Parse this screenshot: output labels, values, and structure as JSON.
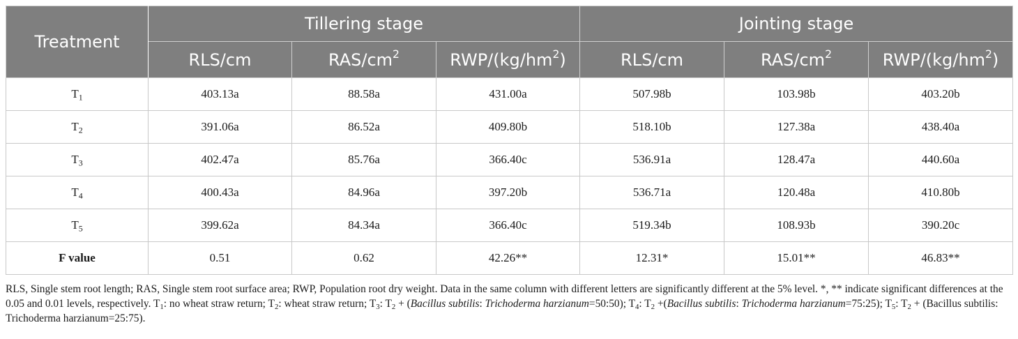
{
  "table": {
    "treatment_header": "Treatment",
    "groups": [
      "Tillering stage",
      "Jointing stage"
    ],
    "sub_headers": [
      {
        "base": "RLS/cm",
        "sup": "",
        "suffix": ""
      },
      {
        "base": "RAS/cm",
        "sup": "2",
        "suffix": ""
      },
      {
        "base": "RWP/(kg/hm",
        "sup": "2",
        "suffix": ")"
      },
      {
        "base": "RLS/cm",
        "sup": "",
        "suffix": ""
      },
      {
        "base": "RAS/cm",
        "sup": "2",
        "suffix": ""
      },
      {
        "base": "RWP/(kg/hm",
        "sup": "2",
        "suffix": ")"
      }
    ],
    "rows": [
      {
        "label": "T",
        "sub": "1",
        "values": [
          "403.13a",
          "88.58a",
          "431.00a",
          "507.98b",
          "103.98b",
          "403.20b"
        ]
      },
      {
        "label": "T",
        "sub": "2",
        "values": [
          "391.06a",
          "86.52a",
          "409.80b",
          "518.10b",
          "127.38a",
          "438.40a"
        ]
      },
      {
        "label": "T",
        "sub": "3",
        "values": [
          "402.47a",
          "85.76a",
          "366.40c",
          "536.91a",
          "128.47a",
          "440.60a"
        ]
      },
      {
        "label": "T",
        "sub": "4",
        "values": [
          "400.43a",
          "84.96a",
          "397.20b",
          "536.71a",
          "120.48a",
          "410.80b"
        ]
      },
      {
        "label": "T",
        "sub": "5",
        "values": [
          "399.62a",
          "84.34a",
          "366.40c",
          "519.34b",
          "108.93b",
          "390.20c"
        ]
      },
      {
        "label": "F value",
        "sub": "",
        "bold": true,
        "values": [
          "0.51",
          "0.62",
          "42.26**",
          "12.31*",
          "15.01**",
          "46.83**"
        ]
      }
    ]
  },
  "footnote": [
    {
      "t": "RLS, Single stem root length; RAS, Single stem root surface area; RWP, Population root dry weight. Data in the same column with different letters are significantly different at the 5% level. *, ** indicate significant differences at the 0.05 and 0.01 levels, respectively. T"
    },
    {
      "t": "1",
      "sub": true
    },
    {
      "t": ": no wheat straw return; T"
    },
    {
      "t": "2",
      "sub": true
    },
    {
      "t": ": wheat straw return; T"
    },
    {
      "t": "3",
      "sub": true
    },
    {
      "t": ": T"
    },
    {
      "t": "2",
      "sub": true
    },
    {
      "t": " + ("
    },
    {
      "t": "Bacillus subtilis",
      "i": true
    },
    {
      "t": ": "
    },
    {
      "t": "Trichoderma harzianum",
      "i": true
    },
    {
      "t": "=50:50); T"
    },
    {
      "t": "4",
      "sub": true
    },
    {
      "t": ": T"
    },
    {
      "t": "2",
      "sub": true
    },
    {
      "t": " +("
    },
    {
      "t": "Bacillus subtilis",
      "i": true
    },
    {
      "t": ": "
    },
    {
      "t": "Trichoderma harzianum",
      "i": true
    },
    {
      "t": "=75:25); T"
    },
    {
      "t": "5",
      "sub": true
    },
    {
      "t": ": T"
    },
    {
      "t": "2",
      "sub": true
    },
    {
      "t": " + (Bacillus subtilis: Trichoderma harzianum=25:75)."
    }
  ],
  "colors": {
    "header_bg": "#7f7f7f",
    "header_text": "#ffffff",
    "border": "#c8c8c8"
  }
}
